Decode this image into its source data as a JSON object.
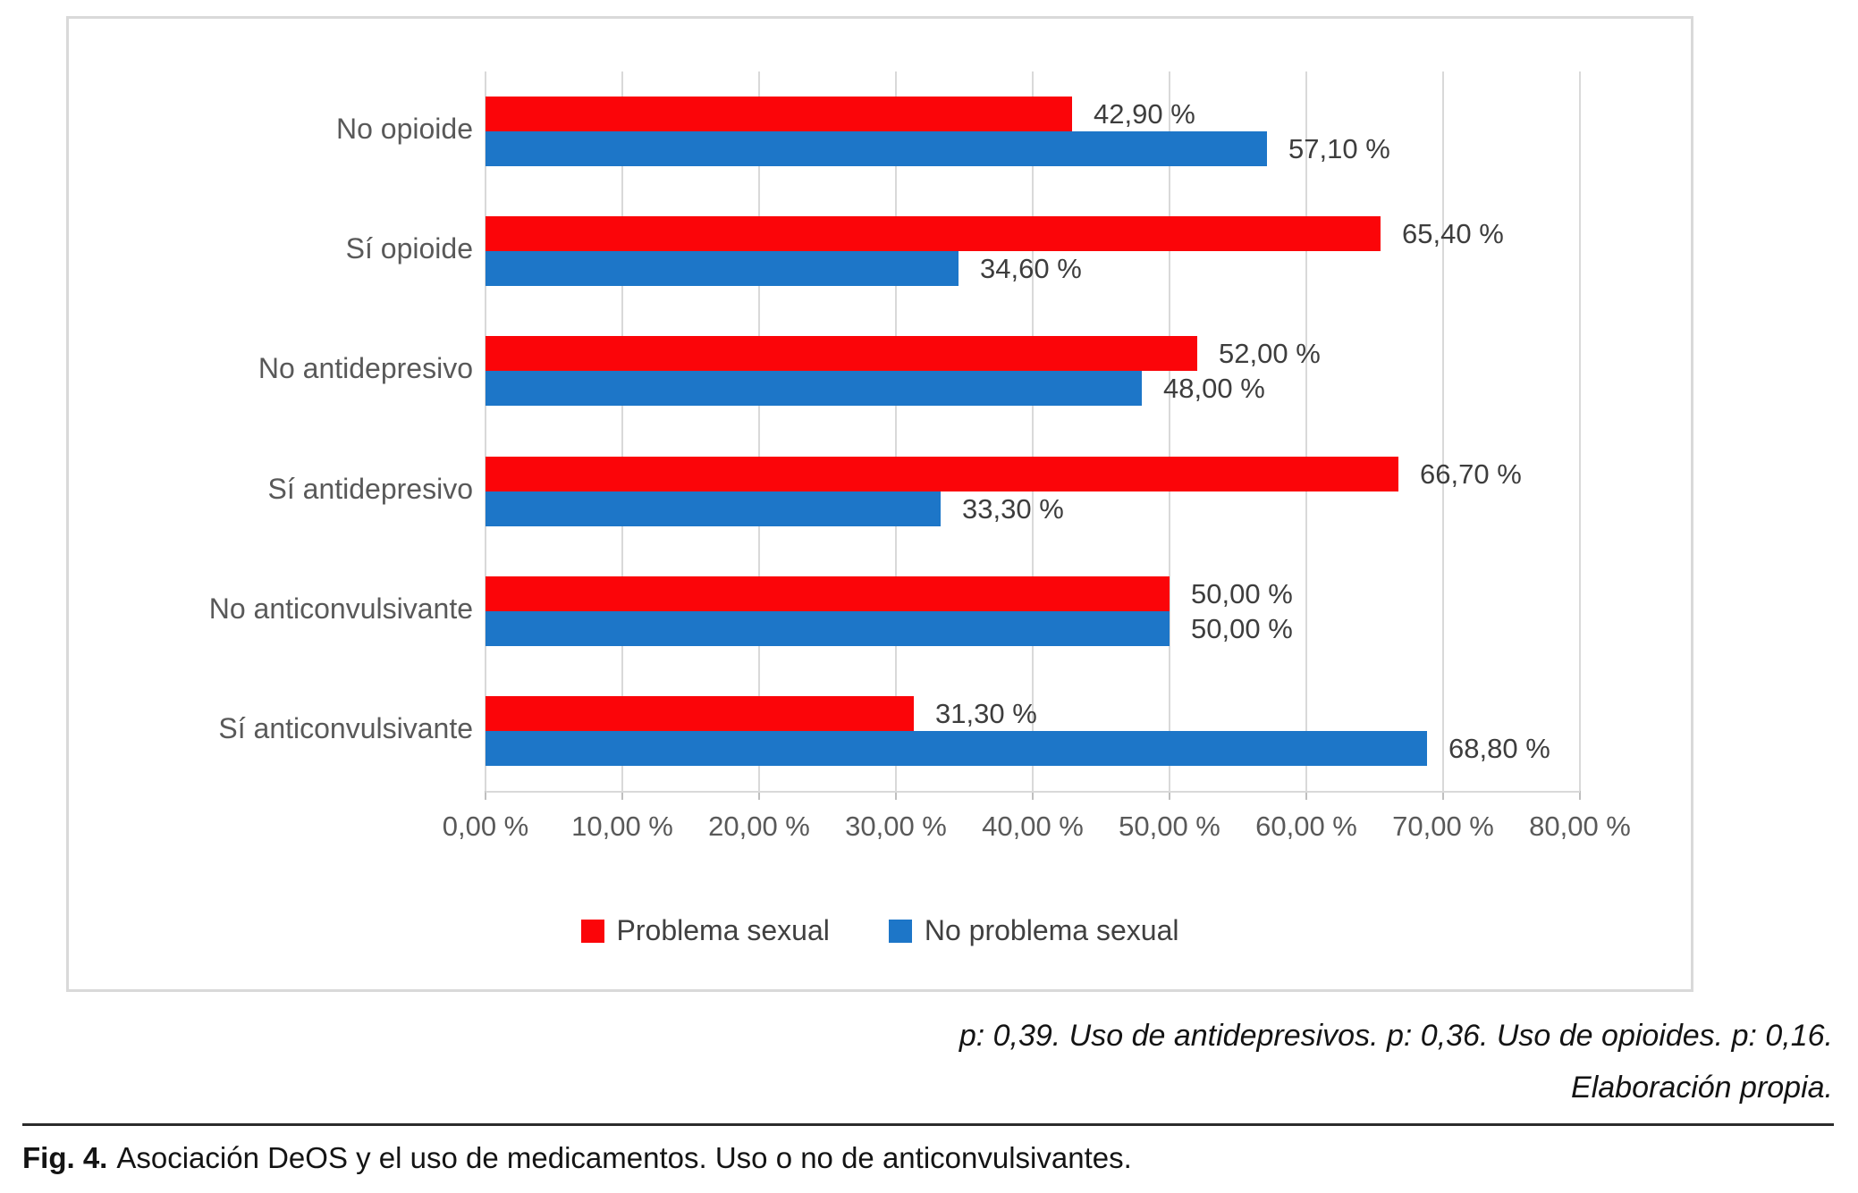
{
  "chart_data": {
    "type": "bar",
    "orientation": "horizontal",
    "title": "",
    "xlabel": "",
    "ylabel": "",
    "xlim": [
      0,
      80
    ],
    "grid": true,
    "legend_position": "bottom",
    "x_ticks": [
      "0,00 %",
      "10,00 %",
      "20,00 %",
      "30,00 %",
      "40,00 %",
      "50,00 %",
      "60,00 %",
      "70,00 %",
      "80,00 %"
    ],
    "categories": [
      "No opioide",
      "Sí opioide",
      "No antidepresivo",
      "Sí antidepresivo",
      "No anticonvulsivante",
      "Sí anticonvulsivante"
    ],
    "series": [
      {
        "name": "Problema sexual",
        "color": "#fb0509",
        "values": [
          42.9,
          65.4,
          52.0,
          66.7,
          50.0,
          31.3
        ],
        "labels": [
          "42,90 %",
          "65,40 %",
          "52,00 %",
          "66,70 %",
          "50,00 %",
          "31,30 %"
        ]
      },
      {
        "name": "No problema sexual",
        "color": "#1d76c8",
        "values": [
          57.1,
          34.6,
          48.0,
          33.3,
          50.0,
          68.8
        ],
        "labels": [
          "57,10 %",
          "34,60 %",
          "48,00 %",
          "33,30 %",
          "50,00 %",
          "68,80 %"
        ]
      }
    ]
  },
  "notes": {
    "line1": "p: 0,39. Uso de antidepresivos. p: 0,36. Uso de opioides. p: 0,16.",
    "line2": "Elaboración propia."
  },
  "caption": {
    "prefix": "Fig. 4.",
    "text": "Asociación DeOS y el uso de medicamentos. Uso o no de anticonvulsivantes."
  }
}
